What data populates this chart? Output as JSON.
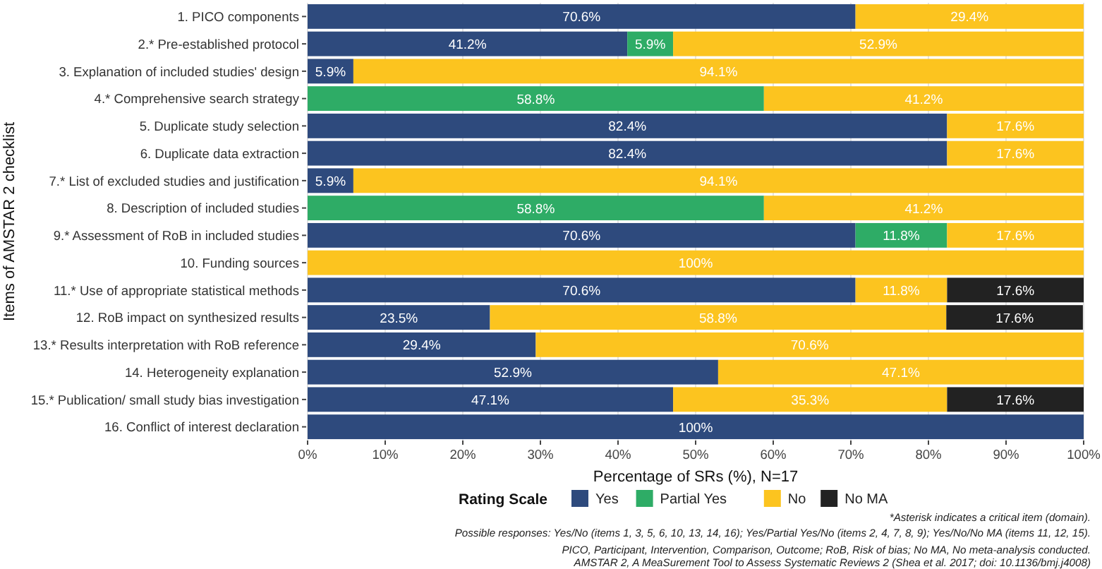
{
  "chart_data": {
    "type": "bar",
    "orientation": "horizontal",
    "stacked": true,
    "xlabel": "Percentage of SRs (%), N=17",
    "ylabel": "Items of AMSTAR 2 checklist",
    "legend_title": "Rating Scale",
    "legend": "bottom",
    "grid": "x",
    "categories": [
      "1. PICO components",
      "2.* Pre-established protocol",
      "3. Explanation of included studies' design",
      "4.* Comprehensive search strategy",
      "5. Duplicate study selection",
      "6. Duplicate data extraction",
      "7.* List of excluded studies and justification",
      "8. Description of included studies",
      "9.* Assessment of RoB in included studies",
      "10. Funding sources",
      "11.* Use of appropriate statistical methods",
      "12. RoB impact on synthesized results",
      "13.* Results interpretation with RoB reference",
      "14. Heterogeneity explanation",
      "15.* Publication/ small study bias investigation",
      "16. Conflict of interest declaration"
    ],
    "series": [
      {
        "name": "Yes",
        "color": "#2e4a7d",
        "values": [
          70.6,
          41.2,
          5.9,
          null,
          82.4,
          82.4,
          5.9,
          null,
          70.6,
          null,
          70.6,
          23.5,
          29.4,
          52.9,
          47.1,
          100
        ],
        "value_labels": [
          "70.6%",
          "41.2%",
          "5.9%",
          null,
          "82.4%",
          "82.4%",
          "5.9%",
          null,
          "70.6%",
          null,
          "70.6%",
          "23.5%",
          "29.4%",
          "52.9%",
          "47.1%",
          "100%"
        ]
      },
      {
        "name": "Partial Yes",
        "color": "#2eac66",
        "values": [
          null,
          5.9,
          null,
          58.8,
          null,
          null,
          null,
          58.8,
          11.8,
          null,
          null,
          null,
          null,
          null,
          null,
          null
        ],
        "value_labels": [
          null,
          "5.9%",
          null,
          "58.8%",
          null,
          null,
          null,
          "58.8%",
          "11.8%",
          null,
          null,
          null,
          null,
          null,
          null,
          null
        ]
      },
      {
        "name": "No",
        "color": "#fcc41f",
        "values": [
          29.4,
          52.9,
          94.1,
          41.2,
          17.6,
          17.6,
          94.1,
          41.2,
          17.6,
          100,
          11.8,
          58.8,
          70.6,
          47.1,
          35.3,
          null
        ],
        "value_labels": [
          "29.4%",
          "52.9%",
          "94.1%",
          "41.2%",
          "17.6%",
          "17.6%",
          "94.1%",
          "41.2%",
          "17.6%",
          "100%",
          "11.8%",
          "58.8%",
          "70.6%",
          "47.1%",
          "35.3%",
          null
        ]
      },
      {
        "name": "No MA",
        "color": "#222222",
        "values": [
          null,
          null,
          null,
          null,
          null,
          null,
          null,
          null,
          null,
          null,
          17.6,
          17.6,
          null,
          null,
          17.6,
          null
        ],
        "value_labels": [
          null,
          null,
          null,
          null,
          null,
          null,
          null,
          null,
          null,
          null,
          "17.6%",
          "17.6%",
          null,
          null,
          "17.6%",
          null
        ]
      }
    ],
    "xlim": [
      0,
      100
    ],
    "xticks": [
      {
        "value": 0,
        "label": "0%"
      },
      {
        "value": 10,
        "label": "10%"
      },
      {
        "value": 20,
        "label": "20%"
      },
      {
        "value": 30,
        "label": "30%"
      },
      {
        "value": 40,
        "label": "40%"
      },
      {
        "value": 50,
        "label": "50%"
      },
      {
        "value": 60,
        "label": "60%"
      },
      {
        "value": 70,
        "label": "70%"
      },
      {
        "value": 80,
        "label": "80%"
      },
      {
        "value": 90,
        "label": "90%"
      },
      {
        "value": 100,
        "label": "100%"
      }
    ],
    "annotations": [
      "*Asterisk indicates a critical item (domain).",
      "Possible responses: Yes/No (items 1, 3, 5, 6, 10, 13, 14, 16); Yes/Partial Yes/No (items 2, 4, 7, 8, 9); Yes/No/No MA (items 11, 12, 15).",
      "PICO, Participant, Intervention, Comparison, Outcome; RoB, Risk of bias; No MA, No meta-analysis conducted.",
      "AMSTAR 2, A MeaSurement Tool to Assess Systematic Reviews 2 (Shea et al. 2017; doi: 10.1136/bmj.j4008)"
    ]
  }
}
